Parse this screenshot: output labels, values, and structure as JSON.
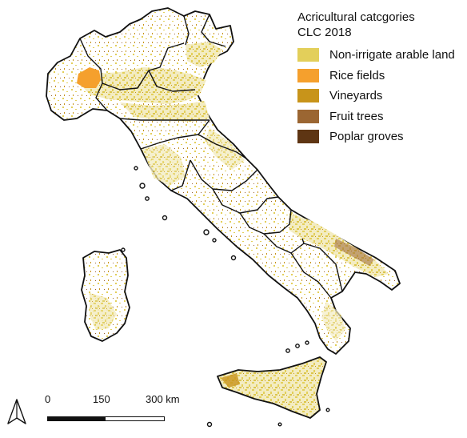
{
  "legend": {
    "title": "Acricultural catcgories",
    "subtitle": "CLC 2018",
    "items": [
      {
        "label": "Non-irrigate arable land",
        "color": "#e3cf5a"
      },
      {
        "label": "Rice fields",
        "color": "#f5a02d"
      },
      {
        "label": "Vineyards",
        "color": "#c8941a"
      },
      {
        "label": "Fruit trees",
        "color": "#9b6632"
      },
      {
        "label": "Poplar groves",
        "color": "#5e3513"
      }
    ]
  },
  "scalebar": {
    "labels": [
      "0",
      "150",
      "300 km"
    ]
  },
  "north_arrow_icon": "north-arrow-icon",
  "map": {
    "outline_color": "#111111",
    "land_color": "#ffffff"
  }
}
